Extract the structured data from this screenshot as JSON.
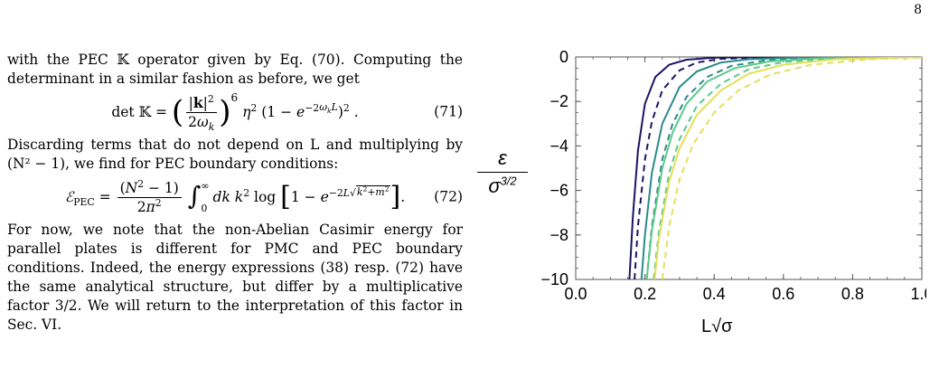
{
  "page_number": "8",
  "text": {
    "p1": "with the PEC 𝕂 operator given by Eq. (70). Computing the determinant in a similar fashion as before, we get",
    "eq71_number": "(71)",
    "p2": "Discarding terms that do not depend on L and multiplying by (N² − 1), we find for PEC boundary conditions:",
    "eq72_number": "(72)",
    "p3": "For now, we note that the non-Abelian Casimir energy for parallel plates is different for PMC and PEC boundary conditions. Indeed, the energy expressions (38) resp. (72) have the same analytical structure, but differ by a multiplicative factor 3/2. We will return to the interpretation of this factor in Sec. VI."
  },
  "chart_data": {
    "type": "line",
    "xlabel": "L√σ",
    "ylabel_num": "ε",
    "ylabel_den": "σ3/2",
    "xlim": [
      0,
      1
    ],
    "ylim": [
      -10,
      0
    ],
    "xticks": [
      "0.0",
      "0.2",
      "0.4",
      "0.6",
      "0.8",
      "1.0"
    ],
    "yticks": [
      "0",
      "−2",
      "−4",
      "−6",
      "−8",
      "−10"
    ],
    "series": [
      {
        "style": "solid",
        "color": "#1b1464",
        "x": [
          0.155,
          0.165,
          0.18,
          0.2,
          0.23,
          0.27,
          0.32,
          0.4,
          0.5,
          1.0
        ],
        "y": [
          -10,
          -7.2,
          -4.2,
          -2.1,
          -0.9,
          -0.35,
          -0.12,
          -0.03,
          -0.01,
          0
        ]
      },
      {
        "style": "dashed",
        "color": "#1b1464",
        "x": [
          0.17,
          0.18,
          0.2,
          0.22,
          0.25,
          0.3,
          0.35,
          0.42,
          0.55,
          1.0
        ],
        "y": [
          -10,
          -7.6,
          -4.6,
          -2.9,
          -1.5,
          -0.6,
          -0.25,
          -0.08,
          -0.02,
          0
        ]
      },
      {
        "style": "solid",
        "color": "#2b8a8a",
        "x": [
          0.19,
          0.2,
          0.22,
          0.25,
          0.3,
          0.35,
          0.42,
          0.5,
          0.65,
          1.0
        ],
        "y": [
          -10,
          -8.0,
          -5.2,
          -3.0,
          -1.35,
          -0.65,
          -0.25,
          -0.1,
          -0.02,
          0
        ]
      },
      {
        "style": "dashed",
        "color": "#2b8a8a",
        "x": [
          0.205,
          0.22,
          0.25,
          0.28,
          0.32,
          0.38,
          0.45,
          0.55,
          0.7,
          1.0
        ],
        "y": [
          -10,
          -7.6,
          -4.6,
          -3.0,
          -1.8,
          -0.9,
          -0.4,
          -0.15,
          -0.04,
          0
        ]
      },
      {
        "style": "solid",
        "color": "#5cc98a",
        "x": [
          0.205,
          0.22,
          0.25,
          0.28,
          0.32,
          0.38,
          0.46,
          0.56,
          0.7,
          1.0
        ],
        "y": [
          -10,
          -7.8,
          -5.0,
          -3.4,
          -2.1,
          -1.1,
          -0.5,
          -0.2,
          -0.06,
          0
        ]
      },
      {
        "style": "dashed",
        "color": "#5cc98a",
        "x": [
          0.225,
          0.24,
          0.27,
          0.3,
          0.35,
          0.42,
          0.5,
          0.6,
          0.75,
          1.0
        ],
        "y": [
          -10,
          -7.9,
          -5.2,
          -3.7,
          -2.2,
          -1.2,
          -0.55,
          -0.23,
          -0.07,
          0
        ]
      },
      {
        "style": "solid",
        "color": "#e3df5a",
        "x": [
          0.228,
          0.24,
          0.27,
          0.3,
          0.35,
          0.42,
          0.5,
          0.6,
          0.75,
          1.0
        ],
        "y": [
          -10,
          -8.2,
          -5.6,
          -4.1,
          -2.6,
          -1.5,
          -0.75,
          -0.35,
          -0.1,
          -0.01
        ]
      },
      {
        "style": "dashed",
        "color": "#e3df5a",
        "x": [
          0.25,
          0.27,
          0.3,
          0.34,
          0.4,
          0.47,
          0.56,
          0.68,
          0.85,
          1.0
        ],
        "y": [
          -10,
          -7.6,
          -5.5,
          -3.9,
          -2.5,
          -1.5,
          -0.8,
          -0.35,
          -0.1,
          -0.03
        ]
      }
    ]
  }
}
